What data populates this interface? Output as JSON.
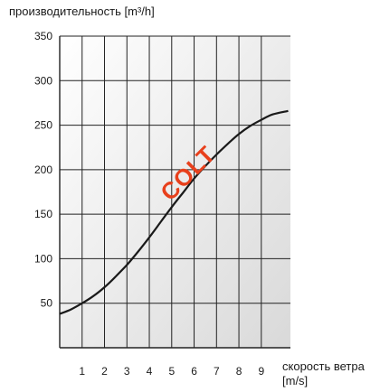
{
  "chart_data": {
    "type": "line",
    "ylabel": "производительность [m³/h]",
    "xlabel_line1": "скорость ветра",
    "xlabel_line2": "[m/s]",
    "watermark": "COLT",
    "xlim": [
      0,
      10.3
    ],
    "ylim": [
      0,
      350
    ],
    "x_ticks": [
      1,
      2,
      3,
      4,
      5,
      6,
      7,
      8,
      9
    ],
    "y_ticks": [
      50,
      100,
      150,
      200,
      250,
      300,
      350
    ],
    "grid": true,
    "series": [
      {
        "x": [
          0,
          0.5,
          1,
          1.5,
          2,
          2.5,
          3,
          3.5,
          4,
          4.5,
          5,
          5.5,
          6,
          6.5,
          7,
          7.5,
          8,
          8.5,
          9,
          9.5,
          10.2
        ],
        "y": [
          38,
          43,
          50,
          58,
          68,
          80,
          93,
          108,
          124,
          141,
          158,
          174,
          190,
          204,
          217,
          229,
          240,
          249,
          256,
          262,
          266
        ]
      }
    ],
    "colors": {
      "line": "#1a1a1a",
      "grid": "#222222",
      "watermark": "#e8401c",
      "background_light": "#ffffff",
      "background_dark": "#d9d9d9"
    }
  }
}
